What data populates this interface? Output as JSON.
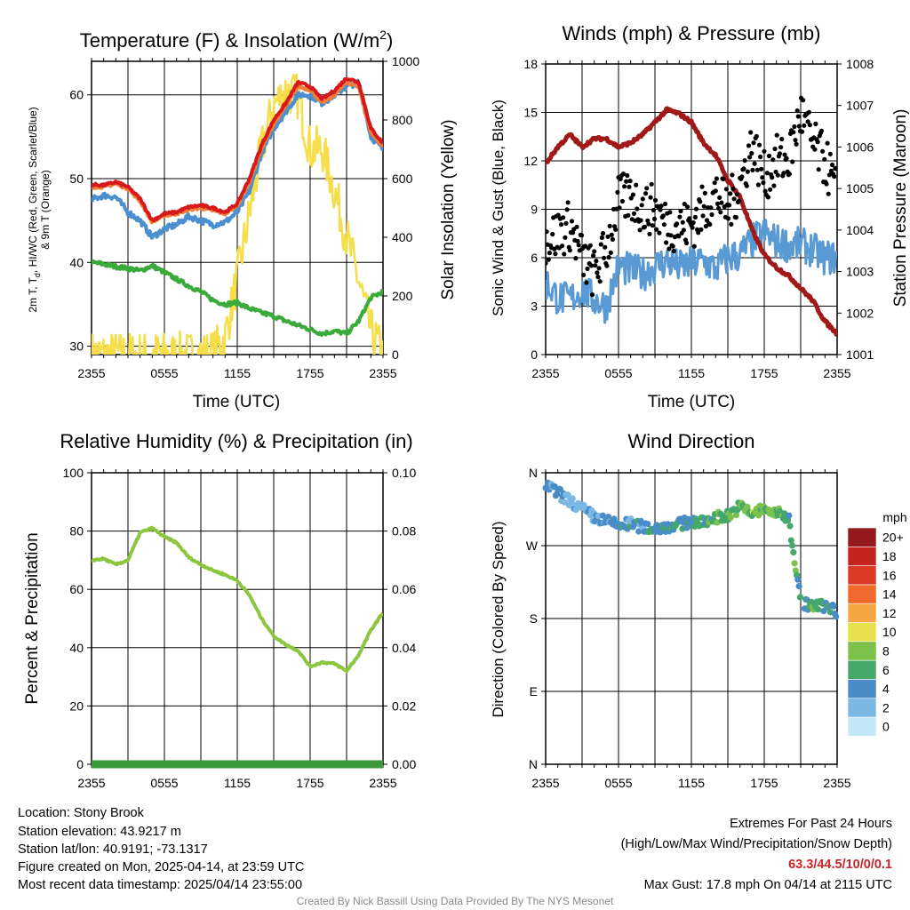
{
  "charts": {
    "temp": {
      "title_main": "Temperature (F) & Insolation (W/m",
      "title_sup": "2",
      "title_end": ")",
      "ylabel_left_1": "2m T, T",
      "ylabel_left_sub": "d",
      "ylabel_left_2": ", HI/WC (Red, Green, Scarlet/Blue)",
      "ylabel_left_3": "& 9m T (Orange)",
      "ylabel_right": "Solar Insolation (Yellow)",
      "xlabel": "Time (UTC)"
    },
    "wind": {
      "title": "Winds (mph) & Pressure (mb)",
      "ylabel_left": "Sonic Wind & Gust (Blue, Black)",
      "ylabel_right": "Station Pressure (Maroon)",
      "xlabel": "Time (UTC)"
    },
    "rh": {
      "title": "Relative Humidity (%) & Precipitation (in)",
      "ylabel_left": "Percent & Precipitation"
    },
    "wdir": {
      "title": "Wind Direction",
      "ylabel_left": "Direction (Colored By Speed)",
      "legend_title": "mph"
    }
  },
  "footer": {
    "location": "Location: Stony Brook",
    "elevation": "Station elevation: 43.9217 m",
    "latlon": "Station lat/lon: 40.9191; -73.1317",
    "created": "Figure created on Mon, 2025-04-14, at 23:59 UTC",
    "recent": "Most recent data timestamp: 2025/04/14 23:55:00",
    "extremes_title": "Extremes For Past 24 Hours",
    "extremes_sub": "(High/Low/Max Wind/Precipitation/Snow Depth)",
    "extremes_values": "63.3/44.5/10/0/0.1",
    "max_gust": "Max Gust: 17.8 mph On 04/14 at 2115 UTC",
    "credit": "Created By Nick Bassill Using Data Provided By The NYS Mesonet"
  },
  "colors": {
    "temperature": "#d7191c",
    "nine_m_temp": "#f07d3a",
    "wind_chill": "#4a8fcf",
    "dewpoint": "#3aaa3a",
    "insolation": "#f5de4a",
    "wind": "#5a9ad4",
    "gust": "#000000",
    "pressure": "#a01818",
    "rh": "#8cc63f",
    "precip": "#3b9b3b"
  },
  "chart_data": [
    {
      "id": "temp",
      "type": "line",
      "x_ticks": [
        "2355",
        "0555",
        "1155",
        "1755",
        "2355"
      ],
      "ylim_left": [
        29,
        64
      ],
      "yticks_left": [
        "30",
        "40",
        "50",
        "60"
      ],
      "ylim_right": [
        0,
        1000
      ],
      "yticks_right": [
        "0",
        "200",
        "400",
        "600",
        "800",
        "1000"
      ],
      "x": [
        0,
        1,
        2,
        3,
        4,
        5,
        6,
        7,
        8,
        9,
        10,
        11,
        12,
        13,
        14,
        15,
        16,
        17,
        18,
        19,
        20,
        21,
        22,
        23,
        24
      ],
      "series": [
        {
          "role": "temperature",
          "values": [
            49.3,
            49.2,
            49.6,
            49.0,
            47.6,
            45.0,
            45.8,
            46.0,
            46.6,
            46.8,
            46.5,
            46.0,
            47.0,
            50.0,
            54.0,
            57.0,
            59.0,
            61.5,
            61.0,
            59.5,
            60.5,
            62.0,
            61.5,
            56.0,
            54.2
          ]
        },
        {
          "role": "nine_m_temp",
          "values": [
            49.0,
            49.0,
            49.4,
            48.8,
            47.3,
            44.8,
            45.6,
            45.8,
            46.3,
            46.5,
            46.2,
            45.8,
            46.8,
            49.6,
            53.6,
            56.5,
            58.6,
            61.0,
            60.6,
            59.0,
            60.0,
            61.5,
            61.0,
            55.5,
            53.8
          ]
        },
        {
          "role": "wind_chill",
          "values": [
            47.5,
            48.0,
            47.8,
            46.0,
            45.0,
            43.0,
            44.0,
            44.5,
            45.5,
            45.0,
            44.5,
            44.8,
            46.0,
            48.5,
            53.0,
            56.0,
            58.0,
            60.0,
            60.0,
            59.0,
            60.0,
            61.0,
            61.5,
            55.0,
            53.5
          ]
        },
        {
          "role": "dewpoint",
          "values": [
            40.0,
            39.8,
            39.5,
            39.3,
            39.0,
            39.6,
            38.8,
            38.0,
            37.2,
            36.5,
            35.5,
            35.0,
            35.2,
            34.5,
            34.0,
            33.6,
            33.0,
            32.5,
            32.0,
            31.5,
            31.8,
            31.5,
            33.0,
            35.8,
            36.5
          ]
        },
        {
          "role": "insolation",
          "axis": "right",
          "values": [
            0,
            0,
            0,
            0,
            0,
            0,
            0,
            0,
            0,
            0,
            5,
            60,
            260,
            480,
            700,
            850,
            900,
            880,
            700,
            700,
            560,
            400,
            250,
            80,
            0
          ]
        }
      ]
    },
    {
      "id": "wind",
      "type": "line",
      "x_ticks": [
        "2355",
        "0555",
        "1155",
        "1755",
        "2355"
      ],
      "ylim_left": [
        0,
        18
      ],
      "yticks_left": [
        "0",
        "3",
        "6",
        "9",
        "12",
        "15",
        "18"
      ],
      "ylim_right": [
        1001,
        1008
      ],
      "yticks_right": [
        "1001",
        "1002",
        "1003",
        "1004",
        "1005",
        "1006",
        "1007",
        "1008"
      ],
      "x": [
        0,
        1,
        2,
        3,
        4,
        5,
        6,
        7,
        8,
        9,
        10,
        11,
        12,
        13,
        14,
        15,
        16,
        17,
        18,
        19,
        20,
        21,
        22,
        23,
        24
      ],
      "series": [
        {
          "role": "wind",
          "values": [
            4.5,
            3.5,
            3.4,
            4.0,
            3.4,
            3.0,
            5.5,
            5.2,
            5.0,
            5.5,
            5.8,
            5.4,
            5.6,
            5.8,
            5.3,
            6.0,
            6.2,
            7.0,
            7.5,
            7.0,
            6.8,
            6.8,
            6.5,
            6.0,
            6.0
          ]
        },
        {
          "role": "gust",
          "values": [
            7.0,
            7.5,
            8.0,
            6.0,
            5.0,
            6.5,
            9.5,
            9.8,
            9.0,
            9.0,
            8.0,
            8.0,
            8.0,
            9.0,
            10.0,
            9.0,
            10.5,
            13.0,
            11.0,
            12.0,
            12.0,
            15.0,
            13.0,
            12.0,
            10.0
          ]
        },
        {
          "role": "pressure",
          "axis": "right",
          "values": [
            1005.6,
            1006.0,
            1006.3,
            1006.0,
            1006.2,
            1006.2,
            1006.0,
            1006.1,
            1006.3,
            1006.6,
            1006.9,
            1006.8,
            1006.6,
            1006.1,
            1005.8,
            1005.2,
            1004.8,
            1004.0,
            1003.4,
            1003.1,
            1002.9,
            1002.6,
            1002.3,
            1001.8,
            1001.5
          ]
        }
      ]
    },
    {
      "id": "rh",
      "type": "line",
      "x_ticks": [
        "2355",
        "0555",
        "1155",
        "1755",
        "2355"
      ],
      "ylim_left": [
        0,
        100
      ],
      "yticks_left": [
        "0",
        "20",
        "40",
        "60",
        "80",
        "100"
      ],
      "ylim_right": [
        0,
        0.1
      ],
      "yticks_right": [
        "0.00",
        "0.02",
        "0.04",
        "0.06",
        "0.08",
        "0.10"
      ],
      "x": [
        0,
        1,
        2,
        3,
        4,
        5,
        6,
        7,
        8,
        9,
        10,
        11,
        12,
        13,
        14,
        15,
        16,
        17,
        18,
        19,
        20,
        21,
        22,
        23,
        24
      ],
      "series": [
        {
          "role": "rh",
          "values": [
            70,
            70.5,
            68.5,
            70,
            79.5,
            81,
            78,
            76,
            71,
            68.5,
            66.5,
            65,
            63,
            58,
            50,
            44,
            41,
            39,
            33.5,
            35,
            34.5,
            32,
            37.5,
            46,
            52
          ]
        },
        {
          "role": "precip",
          "axis": "right",
          "values": [
            0,
            0,
            0,
            0,
            0,
            0,
            0,
            0,
            0,
            0,
            0,
            0,
            0,
            0,
            0,
            0,
            0,
            0,
            0,
            0,
            0,
            0,
            0,
            0,
            0
          ]
        }
      ]
    },
    {
      "id": "wdir",
      "type": "scatter",
      "x_ticks": [
        "2355",
        "0555",
        "1155",
        "1755",
        "2355"
      ],
      "ylim": [
        0,
        360
      ],
      "yticks": [
        "N",
        "E",
        "S",
        "W",
        "N"
      ],
      "legend": [
        "0",
        "2",
        "4",
        "6",
        "8",
        "10",
        "12",
        "14",
        "16",
        "18",
        "20+"
      ],
      "legend_colors": [
        "#c3e8f7",
        "#7cb8e4",
        "#4a8cc8",
        "#45a86a",
        "#7cc24a",
        "#e8e04a",
        "#f7a644",
        "#ef6a2c",
        "#dc3a26",
        "#c52320",
        "#951a1d"
      ],
      "x": [
        0,
        1,
        2,
        3,
        4,
        5,
        6,
        7,
        8,
        9,
        10,
        11,
        12,
        13,
        14,
        15,
        16,
        17,
        18,
        19,
        20,
        21,
        22,
        23,
        24
      ],
      "direction": [
        345,
        335,
        325,
        315,
        305,
        300,
        295,
        297,
        293,
        291,
        294,
        296,
        300,
        298,
        305,
        307,
        318,
        310,
        315,
        310,
        305,
        200,
        195,
        196,
        188
      ],
      "speed": [
        3.5,
        3.0,
        2.5,
        2.5,
        3.5,
        4.0,
        4.5,
        4.0,
        4.0,
        4.5,
        4.5,
        5.0,
        5.0,
        5.5,
        6.5,
        7.0,
        7.0,
        8.0,
        7.5,
        7.0,
        6.5,
        6.0,
        6.0,
        5.5,
        4.5
      ]
    }
  ]
}
